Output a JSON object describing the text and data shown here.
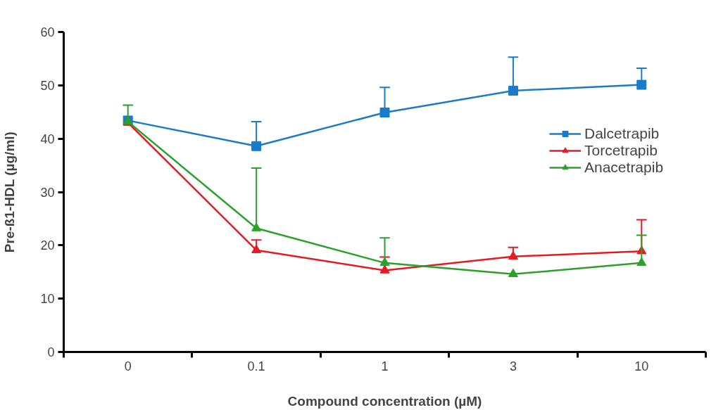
{
  "chart_data": {
    "type": "line",
    "xlabel": "Compound concentration (µM)",
    "ylabel": "Pre-ß1-HDL (µg/ml)",
    "categories": [
      "0",
      "0.1",
      "1",
      "3",
      "10"
    ],
    "ylim": [
      0,
      60
    ],
    "yticks": [
      0,
      10,
      20,
      30,
      40,
      50,
      60
    ],
    "grid": false,
    "legend": "right",
    "series": [
      {
        "name": "Dalcetrapib",
        "color": "#1a7cc8",
        "marker": "square",
        "values": [
          43.4,
          38.6,
          44.9,
          49.0,
          50.1
        ],
        "errors": [
          null,
          [
            38.6,
            43.2
          ],
          [
            44.9,
            49.6
          ],
          [
            49.0,
            55.3
          ],
          [
            50.1,
            53.2
          ]
        ]
      },
      {
        "name": "Torcetrapib",
        "color": "#e31b23",
        "marker": "triangle",
        "values": [
          43.0,
          19.1,
          15.3,
          17.9,
          18.9
        ],
        "errors": [
          null,
          [
            19.1,
            21.0
          ],
          [
            15.3,
            17.8
          ],
          [
            17.9,
            19.6
          ],
          [
            18.9,
            24.8
          ]
        ]
      },
      {
        "name": "Anacetrapib",
        "color": "#2ca02c",
        "marker": "triangle",
        "values": [
          43.2,
          23.2,
          16.7,
          14.6,
          16.7
        ],
        "errors": [
          [
            43.2,
            46.3
          ],
          [
            23.2,
            34.5
          ],
          [
            16.7,
            21.4
          ],
          null,
          [
            16.7,
            21.9
          ]
        ]
      }
    ]
  }
}
